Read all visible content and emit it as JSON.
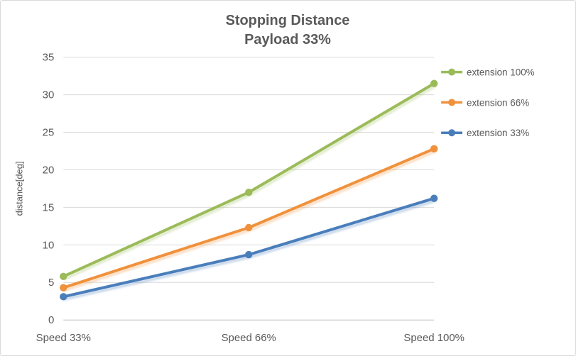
{
  "chart_data": {
    "type": "line",
    "title": "Stopping Distance Payload 33%",
    "title_lines": [
      "Stopping Distance",
      "Payload 33%"
    ],
    "xlabel": "",
    "ylabel": "distance[deg]",
    "categories": [
      "Speed 33%",
      "Speed 66%",
      "Speed 100%"
    ],
    "series": [
      {
        "name": "extension 100%",
        "values": [
          5.8,
          17.0,
          31.5
        ],
        "color": "#9BBB59"
      },
      {
        "name": "extension 66%",
        "values": [
          4.3,
          12.3,
          22.8
        ],
        "color": "#F0913C"
      },
      {
        "name": "extension 33%",
        "values": [
          3.1,
          8.7,
          16.2
        ],
        "color": "#4A7EBB"
      }
    ],
    "ylim": [
      0,
      35
    ],
    "yticks": [
      0,
      5,
      10,
      15,
      20,
      25,
      30,
      35
    ],
    "grid": true,
    "legend_position": "right",
    "marker": "circle",
    "text_color": "#595959",
    "grid_color": "#D9D9D9",
    "axis_color": "#BFBFBF",
    "border_color": "#D9D9D9"
  }
}
